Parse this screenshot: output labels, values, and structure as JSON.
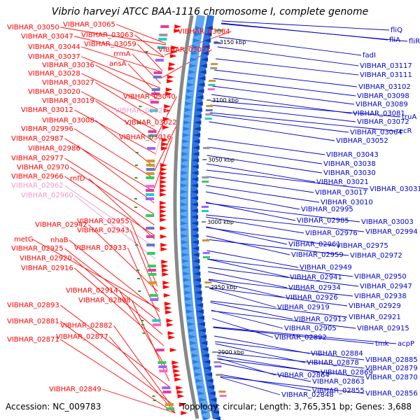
{
  "title": "Vibrio harveyi ATCC BAA-1116 chromosome I, complete genome",
  "accession": "Accession: NC_009783",
  "summary": "Topology: circular; Length: 3,765,351 bp; Genes: 3,688",
  "colors": {
    "left_genes": "#ff0000",
    "left_genes_faded": "#ee99cc",
    "right_genes": "#0000cc",
    "backbone": "#888888",
    "forward_strand": "#4499ee",
    "forward_arrows": "#ff0000",
    "reverse_arrows": "#1155dd"
  },
  "scale_ticks": [
    "3150 kbp",
    "3100 kbp",
    "3050 kbp",
    "3000 kbp",
    "2950 kbp",
    "2900 kbp"
  ],
  "left_labels": [
    {
      "text": "VIBHAR_03050",
      "faded": false
    },
    {
      "text": "VIBHAR_03065",
      "faded": false
    },
    {
      "text": "VIBHAR_03047",
      "faded": false
    },
    {
      "text": "VIBHAR_03063",
      "faded": false
    },
    {
      "text": "VIBHAR_03084",
      "faded": false
    },
    {
      "text": "VIBHAR_03044",
      "faded": false
    },
    {
      "text": "VIBHAR_03059",
      "faded": false
    },
    {
      "text": "VIBHAR_03071",
      "faded": false
    },
    {
      "text": "rrmA",
      "faded": false
    },
    {
      "text": "VIBHAR_03037",
      "faded": false
    },
    {
      "text": "ansA",
      "faded": false
    },
    {
      "text": "VIBHAR_03036",
      "faded": false
    },
    {
      "text": "VIBHAR_03028",
      "faded": false
    },
    {
      "text": "VIBHAR_03027",
      "faded": false
    },
    {
      "text": "VIBHAR_03020",
      "faded": false
    },
    {
      "text": "VIBHAR_03040",
      "faded": false
    },
    {
      "text": "VIBHAR_03019",
      "faded": false
    },
    {
      "text": "VIBHAR_03012",
      "faded": false
    },
    {
      "text": "VIBHAR_03029",
      "faded": true
    },
    {
      "text": "VIBHAR_03008",
      "faded": false
    },
    {
      "text": "VIBHAR_03022",
      "faded": false
    },
    {
      "text": "VIBHAR_02996",
      "faded": false
    },
    {
      "text": "VIBHAR_03016",
      "faded": false
    },
    {
      "text": "VIBHAR_02987",
      "faded": false
    },
    {
      "text": "VIBHAR_02986",
      "faded": false
    },
    {
      "text": "VIBHAR_02977",
      "faded": false
    },
    {
      "text": "VIBHAR_02970",
      "faded": false
    },
    {
      "text": "VIBHAR_02966",
      "faded": false
    },
    {
      "text": "rnfD",
      "faded": false
    },
    {
      "text": "VIBHAR_02962",
      "faded": true
    },
    {
      "text": "VIBHAR_02960",
      "faded": true
    },
    {
      "text": "VIBHAR_02955",
      "faded": false
    },
    {
      "text": "VIBHAR_02942",
      "faded": false
    },
    {
      "text": "VIBHAR_02943",
      "faded": false
    },
    {
      "text": "metG",
      "faded": false
    },
    {
      "text": "nhaB",
      "faded": false
    },
    {
      "text": "VIBHAR_02933",
      "faded": false
    },
    {
      "text": "VIBHAR_02925",
      "faded": false
    },
    {
      "text": "VIBHAR_02920",
      "faded": false
    },
    {
      "text": "VIBHAR_02916",
      "faded": false
    },
    {
      "text": "VIBHAR_02914",
      "faded": false
    },
    {
      "text": "VIBHAR_02898",
      "faded": false
    },
    {
      "text": "VIBHAR_02893",
      "faded": false
    },
    {
      "text": "VIBHAR_02881",
      "faded": false
    },
    {
      "text": "VIBHAR_02882",
      "faded": false
    },
    {
      "text": "VIBHAR_02877",
      "faded": false
    },
    {
      "text": "VIBHAR_02871",
      "faded": false
    },
    {
      "text": "VIBHAR_02849",
      "faded": false
    }
  ],
  "right_labels": [
    {
      "text": "fliQ"
    },
    {
      "text": "fliA"
    },
    {
      "text": "fliR"
    },
    {
      "text": "fadI"
    },
    {
      "text": "VIBHAR_03117"
    },
    {
      "text": "VIBHAR_03111"
    },
    {
      "text": "VIBHAR_03102"
    },
    {
      "text": "VIBHAR_03098"
    },
    {
      "text": "VIBHAR_03089"
    },
    {
      "text": "VIBHAR_03081"
    },
    {
      "text": "truA"
    },
    {
      "text": "VIBHAR_03072"
    },
    {
      "text": "VIBHAR_03064"
    },
    {
      "text": "recR"
    },
    {
      "text": "VIBHAR_03052"
    },
    {
      "text": "VIBHAR_03043"
    },
    {
      "text": "VIBHAR_03038"
    },
    {
      "text": "VIBHAR_03030"
    },
    {
      "text": "VIBHAR_03021"
    },
    {
      "text": "VIBHAR_03031"
    },
    {
      "text": "VIBHAR_03017"
    },
    {
      "text": "VIBHAR_03010"
    },
    {
      "text": "VIBHAR_02995"
    },
    {
      "text": "VIBHAR_02985"
    },
    {
      "text": "VIBHAR_03003"
    },
    {
      "text": "VIBHAR_02976"
    },
    {
      "text": "VIBHAR_02994"
    },
    {
      "text": "VIBHAR_02961"
    },
    {
      "text": "VIBHAR_02975"
    },
    {
      "text": "VIBHAR_02959"
    },
    {
      "text": "VIBHAR_02972"
    },
    {
      "text": "VIBHAR_02949"
    },
    {
      "text": "VIBHAR_02950"
    },
    {
      "text": "VIBHAR_02941"
    },
    {
      "text": "VIBHAR_02947"
    },
    {
      "text": "VIBHAR_02934"
    },
    {
      "text": "VIBHAR_02938"
    },
    {
      "text": "VIBHAR_02926"
    },
    {
      "text": "VIBHAR_02929"
    },
    {
      "text": "VIBHAR_02919"
    },
    {
      "text": "VIBHAR_02921"
    },
    {
      "text": "VIBHAR_02913"
    },
    {
      "text": "VIBHAR_02915"
    },
    {
      "text": "VIBHAR_02905"
    },
    {
      "text": "VIBHAR_02892"
    },
    {
      "text": "tmk"
    },
    {
      "text": "acpP"
    },
    {
      "text": "VIBHAR_02884"
    },
    {
      "text": "VIBHAR_02885"
    },
    {
      "text": "VIBHAR_02878"
    },
    {
      "text": "VIBHAR_02879"
    },
    {
      "text": "VIBHAR_02869"
    },
    {
      "text": "VIBHAR_02864"
    },
    {
      "text": "VIBHAR_02870"
    },
    {
      "text": "VIBHAR_02863"
    },
    {
      "text": "VIBHAR_02855"
    },
    {
      "text": "VIBHAR_02856"
    },
    {
      "text": "VIBHAR_02848"
    }
  ]
}
